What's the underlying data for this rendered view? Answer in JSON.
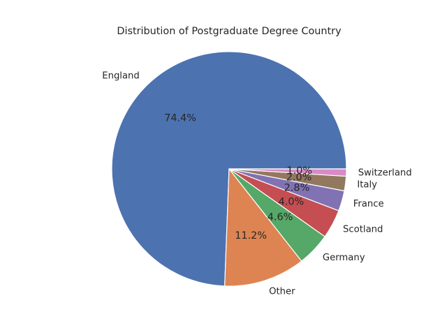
{
  "chart_data": {
    "type": "pie",
    "title": "Distribution of Postgraduate Degree Country",
    "categories": [
      "England",
      "Other",
      "Germany",
      "Scotland",
      "France",
      "Italy",
      "Switzerland"
    ],
    "values": [
      74.4,
      11.2,
      4.6,
      4.0,
      2.8,
      2.0,
      1.0
    ],
    "percent_labels": [
      "74.4%",
      "11.2%",
      "4.6%",
      "4.0%",
      "2.8%",
      "2.0%",
      "1.0%"
    ],
    "colors": [
      "#4c72b0",
      "#dd8452",
      "#55a868",
      "#c44e52",
      "#8172b3",
      "#937860",
      "#da8bc3"
    ],
    "start_angle_deg": 0,
    "direction": "counterclockwise",
    "legend": "none"
  }
}
